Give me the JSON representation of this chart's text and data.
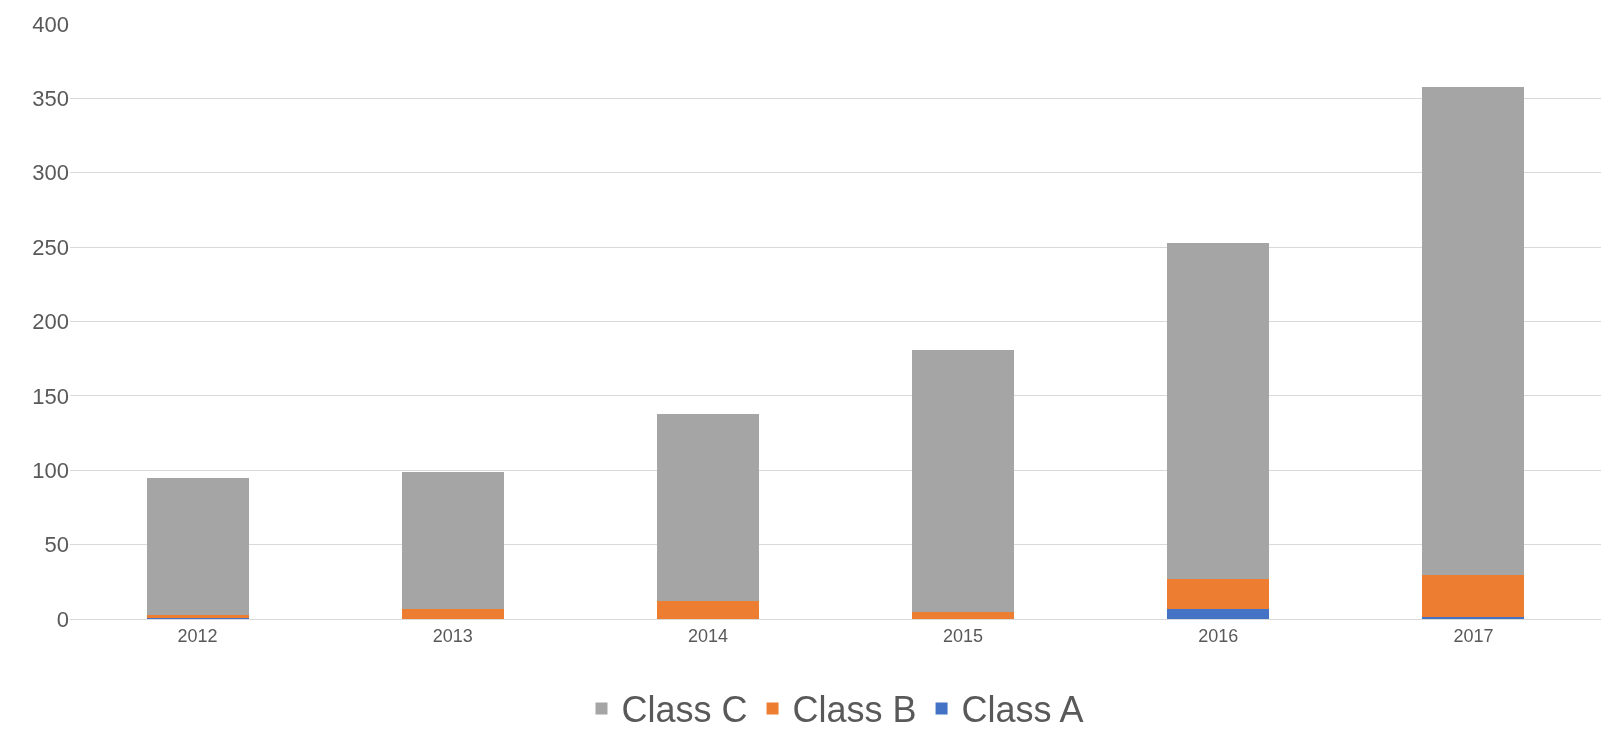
{
  "chart_data": {
    "type": "bar",
    "stacked": true,
    "categories": [
      "2012",
      "2013",
      "2014",
      "2015",
      "2016",
      "2017"
    ],
    "series": [
      {
        "name": "Class A",
        "color": "#4472c4",
        "values": [
          0.5,
          0,
          0,
          0,
          7,
          1.5
        ]
      },
      {
        "name": "Class B",
        "color": "#ed7d31",
        "values": [
          2,
          7,
          12,
          5,
          20,
          28
        ]
      },
      {
        "name": "Class C",
        "color": "#a5a5a5",
        "values": [
          92.5,
          92,
          126,
          176,
          226,
          328
        ]
      }
    ],
    "ylim": [
      0,
      400
    ],
    "yticks": [
      0,
      50,
      100,
      150,
      200,
      250,
      300,
      350,
      400
    ],
    "grid": "y",
    "legend": "bottom"
  }
}
